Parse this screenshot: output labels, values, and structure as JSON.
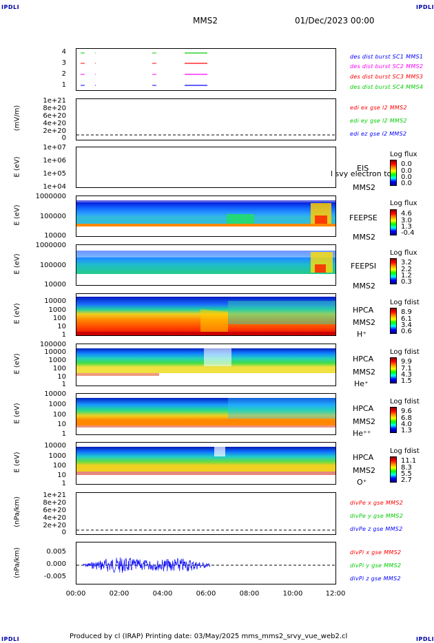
{
  "corners": {
    "tl": "IPDLI",
    "tr": "IPDLI",
    "bl": "IPDLI",
    "br": "IPDLI"
  },
  "header": {
    "spacecraft": "MMS2",
    "date": "01/Dec/2023 00:00"
  },
  "footer": {
    "text": "Produced by cl (IRAP)   Printing date: 03/May/2025   mms_mms2_srvy_vue_web2.cl"
  },
  "time_axis": {
    "labels": [
      "00:00",
      "02:00",
      "04:00",
      "06:00",
      "08:00",
      "10:00",
      "12:00"
    ],
    "range_hours": [
      0,
      12
    ]
  },
  "panel1": {
    "yticks": [
      "4",
      "3",
      "2",
      "1"
    ],
    "legend": [
      "des dist burst SC1 MMS1",
      "des dist burst SC2 MMS2",
      "des dist burst SC3 MMS3",
      "des dist burst SC4 MMS4"
    ],
    "colors": [
      "#0000ff",
      "#ff00ff",
      "#ff0000",
      "#00cc00"
    ]
  },
  "panel2": {
    "ylabel": "(mV/m)",
    "yticks": [
      "1e+21",
      "8e+20",
      "6e+20",
      "4e+20",
      "2e+20",
      "0"
    ],
    "legend": [
      "edi ex gse l2 MMS2",
      "edi ey gse l2 MMS2",
      "edi ez gse l2 MMS2"
    ],
    "colors": [
      "#ff0000",
      "#00cc00",
      "#0000ff"
    ]
  },
  "panel3": {
    "ylabel": "E (eV)",
    "yticks": [
      "1e+07",
      "1e+06",
      "1e+05",
      "1e+04"
    ],
    "instrument": "EIS",
    "spacecraft": "MMS2",
    "overlay": "l svy electron to",
    "cbar_title": "Log flux",
    "cbar_vals": [
      "0.0",
      "0.0",
      "0.0",
      "0.0"
    ]
  },
  "panel4": {
    "ylabel": "E (eV)",
    "yticks": [
      "1000000",
      "100000",
      "10000"
    ],
    "instrument": "FEEPSE",
    "spacecraft": "MMS2",
    "cbar_title": "Log flux",
    "cbar_vals": [
      "4.6",
      "3.0",
      "1.3",
      "-0.4"
    ]
  },
  "panel5": {
    "ylabel": "E (eV)",
    "yticks": [
      "1000000",
      "100000",
      "10000"
    ],
    "instrument": "FEEPSI",
    "spacecraft": "MMS2",
    "cbar_title": "Log flux",
    "cbar_vals": [
      "3.2",
      "2.2",
      "1.2",
      "0.3"
    ]
  },
  "panel6": {
    "ylabel": "E (eV)",
    "yticks": [
      "10000",
      "1000",
      "100",
      "10",
      "1"
    ],
    "instrument": "HPCA",
    "spacecraft": "MMS2",
    "species": "H⁺",
    "cbar_title": "Log fdist",
    "cbar_vals": [
      "8.9",
      "6.1",
      "3.4",
      "0.6"
    ]
  },
  "panel7": {
    "ylabel": "E (eV)",
    "yticks": [
      "100000",
      "10000",
      "1000",
      "100",
      "10",
      "1"
    ],
    "instrument": "HPCA",
    "spacecraft": "MMS2",
    "species": "He⁺",
    "cbar_title": "Log fdist",
    "cbar_vals": [
      "9.9",
      "7.1",
      "4.3",
      "1.5"
    ]
  },
  "panel8": {
    "ylabel": "E (eV)",
    "yticks": [
      "10000",
      "1000",
      "100",
      "10",
      "1"
    ],
    "instrument": "HPCA",
    "spacecraft": "MMS2",
    "species": "He⁺⁺",
    "cbar_title": "Log fdist",
    "cbar_vals": [
      "9.6",
      "6.8",
      "4.0",
      "1.3"
    ]
  },
  "panel9": {
    "ylabel": "E (eV)",
    "yticks": [
      "10000",
      "1000",
      "100",
      "10",
      "1"
    ],
    "instrument": "HPCA",
    "spacecraft": "MMS2",
    "species": "O⁺",
    "cbar_title": "Log fdist",
    "cbar_vals": [
      "11.1",
      "8.3",
      "5.5",
      "2.7"
    ]
  },
  "panel10": {
    "ylabel": "(nPa/km)",
    "yticks": [
      "1e+21",
      "8e+20",
      "6e+20",
      "4e+20",
      "2e+20",
      "0"
    ],
    "legend": [
      "divPe x gse MMS2",
      "divPe y gse MMS2",
      "divPe z gse MMS2"
    ],
    "colors": [
      "#ff0000",
      "#00cc00",
      "#0000ff"
    ]
  },
  "panel11": {
    "ylabel": "(nPa/km)",
    "yticks": [
      "0.005",
      "0.000",
      "-0.005"
    ],
    "legend": [
      "divPi x gse MMS2",
      "divPi y gse MMS2",
      "divPi z gse MMS2"
    ],
    "colors": [
      "#ff0000",
      "#00cc00",
      "#0000ff"
    ]
  },
  "chart_data": {
    "type": "heatmap",
    "x_range_hours": [
      0,
      12
    ],
    "burst_intervals": [
      {
        "spacecraft": "MMS1",
        "level": 1,
        "start_h": 5.0,
        "end_h": 6.1
      },
      {
        "spacecraft": "MMS2",
        "level": 2,
        "start_h": 5.0,
        "end_h": 6.1
      },
      {
        "spacecraft": "MMS3",
        "level": 3,
        "start_h": 5.0,
        "end_h": 6.1
      },
      {
        "spacecraft": "MMS4",
        "level": 4,
        "start_h": 5.0,
        "end_h": 6.1
      }
    ],
    "divPi_ylim": [
      -0.0075,
      0.0075
    ],
    "divPi_active_hours": [
      0.3,
      6.2
    ]
  }
}
